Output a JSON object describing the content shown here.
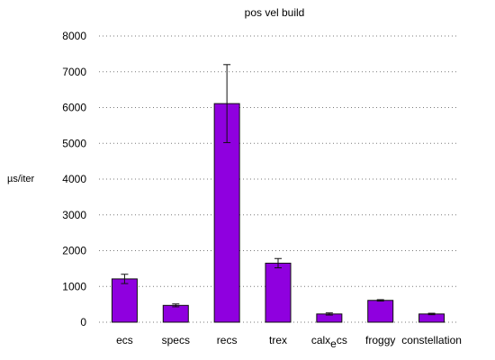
{
  "chart_data": {
    "type": "bar",
    "title": "pos vel build",
    "xlabel": "",
    "ylabel": "µs/iter",
    "categories": [
      "ecs",
      "specs",
      "recs",
      "trex",
      "calx_ecs",
      "froggy",
      "constellation"
    ],
    "category_label_parts": [
      [
        "ecs"
      ],
      [
        "specs"
      ],
      [
        "recs"
      ],
      [
        "trex"
      ],
      [
        "calx",
        "e",
        "cs"
      ],
      [
        "froggy"
      ],
      [
        "constellation"
      ]
    ],
    "series": [
      {
        "values": [
          1210,
          470,
          6110,
          1650,
          230,
          610,
          230
        ],
        "errors": [
          130,
          40,
          1090,
          130,
          30,
          20,
          20
        ]
      }
    ],
    "ylim": [
      0,
      8000
    ],
    "yticks": [
      0,
      1000,
      2000,
      3000,
      4000,
      5000,
      6000,
      7000,
      8000
    ],
    "ytick_labels": [
      "0",
      "1000",
      "2000",
      "3000",
      "4000",
      "5000",
      "6000",
      "7000",
      "8000"
    ],
    "grid": true,
    "legend": "none",
    "colors": {
      "bar": "#8f00df",
      "bar_edge": "#111111",
      "grid": "#7a7a7a",
      "text": "#000000"
    }
  }
}
